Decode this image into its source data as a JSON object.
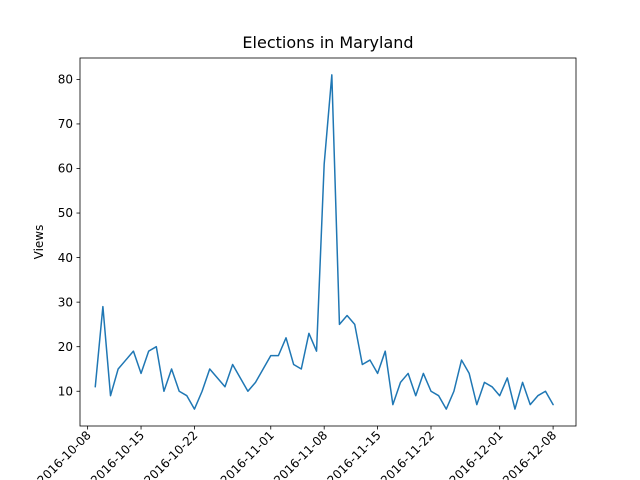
{
  "chart_data": {
    "type": "line",
    "title": "Elections in Maryland",
    "xlabel": "",
    "ylabel": "Views",
    "x_tick_labels": [
      "2016-10-08",
      "2016-10-15",
      "2016-10-22",
      "2016-11-01",
      "2016-11-08",
      "2016-11-15",
      "2016-11-22",
      "2016-12-01",
      "2016-12-08"
    ],
    "x_tick_dates": [
      "2016-10-08",
      "2016-10-15",
      "2016-10-22",
      "2016-11-01",
      "2016-11-08",
      "2016-11-15",
      "2016-11-22",
      "2016-12-01",
      "2016-12-08"
    ],
    "y_ticks": [
      10,
      20,
      30,
      40,
      50,
      60,
      70,
      80
    ],
    "xlim": [
      "2016-10-07",
      "2016-12-11"
    ],
    "ylim": [
      2.2,
      84.8
    ],
    "grid": false,
    "line_color": "#1f77b4",
    "series": [
      {
        "x": [
          "2016-10-09",
          "2016-10-10",
          "2016-10-11",
          "2016-10-12",
          "2016-10-13",
          "2016-10-14",
          "2016-10-15",
          "2016-10-16",
          "2016-10-17",
          "2016-10-18",
          "2016-10-19",
          "2016-10-20",
          "2016-10-21",
          "2016-10-22",
          "2016-10-23",
          "2016-10-24",
          "2016-10-25",
          "2016-10-26",
          "2016-10-27",
          "2016-10-28",
          "2016-10-29",
          "2016-10-30",
          "2016-10-31",
          "2016-11-01",
          "2016-11-02",
          "2016-11-03",
          "2016-11-04",
          "2016-11-05",
          "2016-11-06",
          "2016-11-07",
          "2016-11-08",
          "2016-11-09",
          "2016-11-10",
          "2016-11-11",
          "2016-11-12",
          "2016-11-13",
          "2016-11-14",
          "2016-11-15",
          "2016-11-16",
          "2016-11-17",
          "2016-11-18",
          "2016-11-19",
          "2016-11-20",
          "2016-11-21",
          "2016-11-22",
          "2016-11-23",
          "2016-11-24",
          "2016-11-25",
          "2016-11-26",
          "2016-11-27",
          "2016-11-28",
          "2016-11-29",
          "2016-11-30",
          "2016-12-01",
          "2016-12-02",
          "2016-12-03",
          "2016-12-04",
          "2016-12-05",
          "2016-12-06",
          "2016-12-07",
          "2016-12-08"
        ],
        "values": [
          11,
          29,
          9,
          15,
          17,
          19,
          14,
          19,
          20,
          10,
          15,
          10,
          9,
          6,
          10,
          15,
          13,
          11,
          16,
          13,
          10,
          12,
          15,
          18,
          18,
          22,
          16,
          15,
          23,
          19,
          61,
          81,
          25,
          27,
          25,
          16,
          17,
          14,
          19,
          7,
          12,
          14,
          9,
          14,
          10,
          9,
          6,
          10,
          17,
          14,
          7,
          12,
          11,
          9,
          13,
          6,
          12,
          7,
          9,
          10,
          7
        ]
      }
    ]
  }
}
